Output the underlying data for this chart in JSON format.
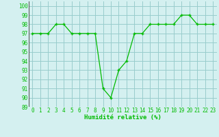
{
  "x": [
    0,
    1,
    2,
    3,
    4,
    5,
    6,
    7,
    8,
    9,
    10,
    11,
    12,
    13,
    14,
    15,
    16,
    17,
    18,
    19,
    20,
    21,
    22,
    23
  ],
  "y": [
    97,
    97,
    97,
    98,
    98,
    97,
    97,
    97,
    97,
    91,
    90,
    93,
    94,
    97,
    97,
    98,
    98,
    98,
    98,
    99,
    99,
    98,
    98,
    98
  ],
  "line_color": "#00bb00",
  "marker": "+",
  "bg_color": "#d4f0f0",
  "grid_color": "#99cccc",
  "xlabel": "Humidité relative (%)",
  "xlabel_color": "#00bb00",
  "ylabel_values": [
    89,
    90,
    91,
    92,
    93,
    94,
    95,
    96,
    97,
    98,
    99,
    100
  ],
  "xlim": [
    -0.5,
    23.5
  ],
  "ylim": [
    89,
    100.5
  ],
  "tick_fontsize": 5.5,
  "xlabel_fontsize": 6.5
}
